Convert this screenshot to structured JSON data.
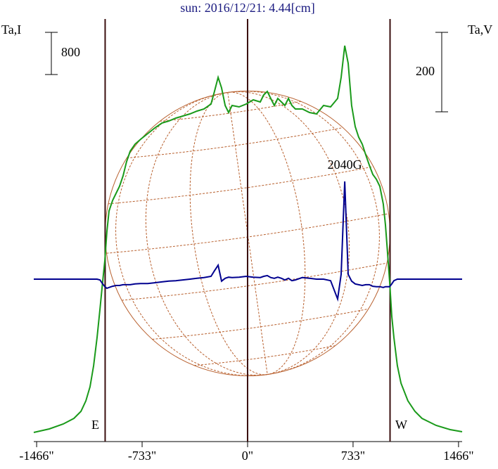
{
  "chart_data": {
    "type": "line",
    "title": "sun: 2016/12/21: 4.44[cm]",
    "y_label": "Ta,I",
    "y2_label": "Ta,V",
    "x": [
      -1486,
      -1378,
      -1281,
      -1207,
      -1158,
      -1124,
      -1095,
      -1070,
      -1046,
      -1026,
      -1007,
      -992,
      -978,
      -963,
      -938,
      -914,
      -890,
      -865,
      -841,
      -816,
      -782,
      -743,
      -694,
      -645,
      -596,
      -547,
      -499,
      -450,
      -401,
      -352,
      -303,
      -254,
      -230,
      -205,
      -181,
      -156,
      -132,
      -108,
      -59,
      -10,
      39,
      88,
      112,
      137,
      161,
      186,
      210,
      235,
      259,
      284,
      308,
      332,
      381,
      430,
      479,
      528,
      577,
      626,
      650,
      675,
      699,
      723,
      748,
      772,
      797,
      821,
      846,
      870,
      895,
      919,
      943,
      958,
      973,
      987,
      1002,
      1017,
      1041,
      1066,
      1114,
      1163,
      1212,
      1310,
      1408,
      1491
    ],
    "series": [
      {
        "name": "I",
        "color": "#1a9a1a",
        "axis": "y",
        "values": [
          173,
          240,
          333,
          440,
          573,
          773,
          1040,
          1440,
          1973,
          2507,
          3040,
          3440,
          3973,
          4373,
          4573,
          4707,
          4840,
          5040,
          5307,
          5507,
          5640,
          5733,
          5840,
          5947,
          6040,
          6080,
          6133,
          6173,
          6213,
          6267,
          6307,
          6400,
          6640,
          6907,
          6707,
          6373,
          6240,
          6373,
          6347,
          6400,
          6480,
          6440,
          6573,
          6640,
          6507,
          6373,
          6507,
          6440,
          6373,
          6507,
          6373,
          6307,
          6307,
          6240,
          6213,
          6373,
          6347,
          6507,
          6907,
          7507,
          7173,
          6373,
          5973,
          5773,
          5640,
          5440,
          5240,
          5067,
          4973,
          4840,
          4507,
          4107,
          3573,
          3040,
          2373,
          1973,
          1440,
          1107,
          773,
          573,
          440,
          307,
          227,
          187
        ]
      },
      {
        "name": "V",
        "color": "#00008f",
        "axis": "y2",
        "values": [
          0,
          0,
          0,
          0,
          0,
          0,
          0,
          0,
          0,
          -2,
          -12,
          -19,
          -23,
          -21,
          -18,
          -16,
          -16,
          -14,
          -14,
          -14,
          -12,
          -11,
          -11,
          -9,
          -7,
          -5,
          -4,
          -2,
          0,
          2,
          4,
          7,
          21,
          35,
          -5,
          2,
          5,
          4,
          5,
          7,
          5,
          4,
          7,
          9,
          4,
          2,
          5,
          2,
          -2,
          2,
          -4,
          -2,
          4,
          2,
          0,
          0,
          -4,
          -50,
          12,
          246,
          12,
          -5,
          -12,
          -14,
          -16,
          -14,
          -14,
          -18,
          -19,
          -19,
          -21,
          -19,
          -19,
          -19,
          -12,
          -4,
          0,
          0,
          0,
          0,
          0,
          0,
          0,
          0
        ]
      }
    ],
    "xlim": [
      -1486,
      1491
    ],
    "xticks": [
      {
        "value": -1466,
        "label": "-1466\""
      },
      {
        "value": -733,
        "label": "-733\""
      },
      {
        "value": 0,
        "label": "0\""
      },
      {
        "value": 733,
        "label": "733\""
      },
      {
        "value": 1466,
        "label": "1466\""
      }
    ],
    "ylim": [
      0,
      8013
    ],
    "y2lim": [
      -409,
      655
    ],
    "scale_bars": [
      {
        "value": 800,
        "axis": "y"
      },
      {
        "value": 200,
        "axis": "y2"
      }
    ],
    "limbs": [
      {
        "value": -990,
        "label": "E"
      },
      {
        "value": 990,
        "label": "W"
      }
    ],
    "limb_color": "#3a0f0f",
    "disk_grid_color": "#b8602e",
    "annotations": [
      "2040G"
    ]
  }
}
